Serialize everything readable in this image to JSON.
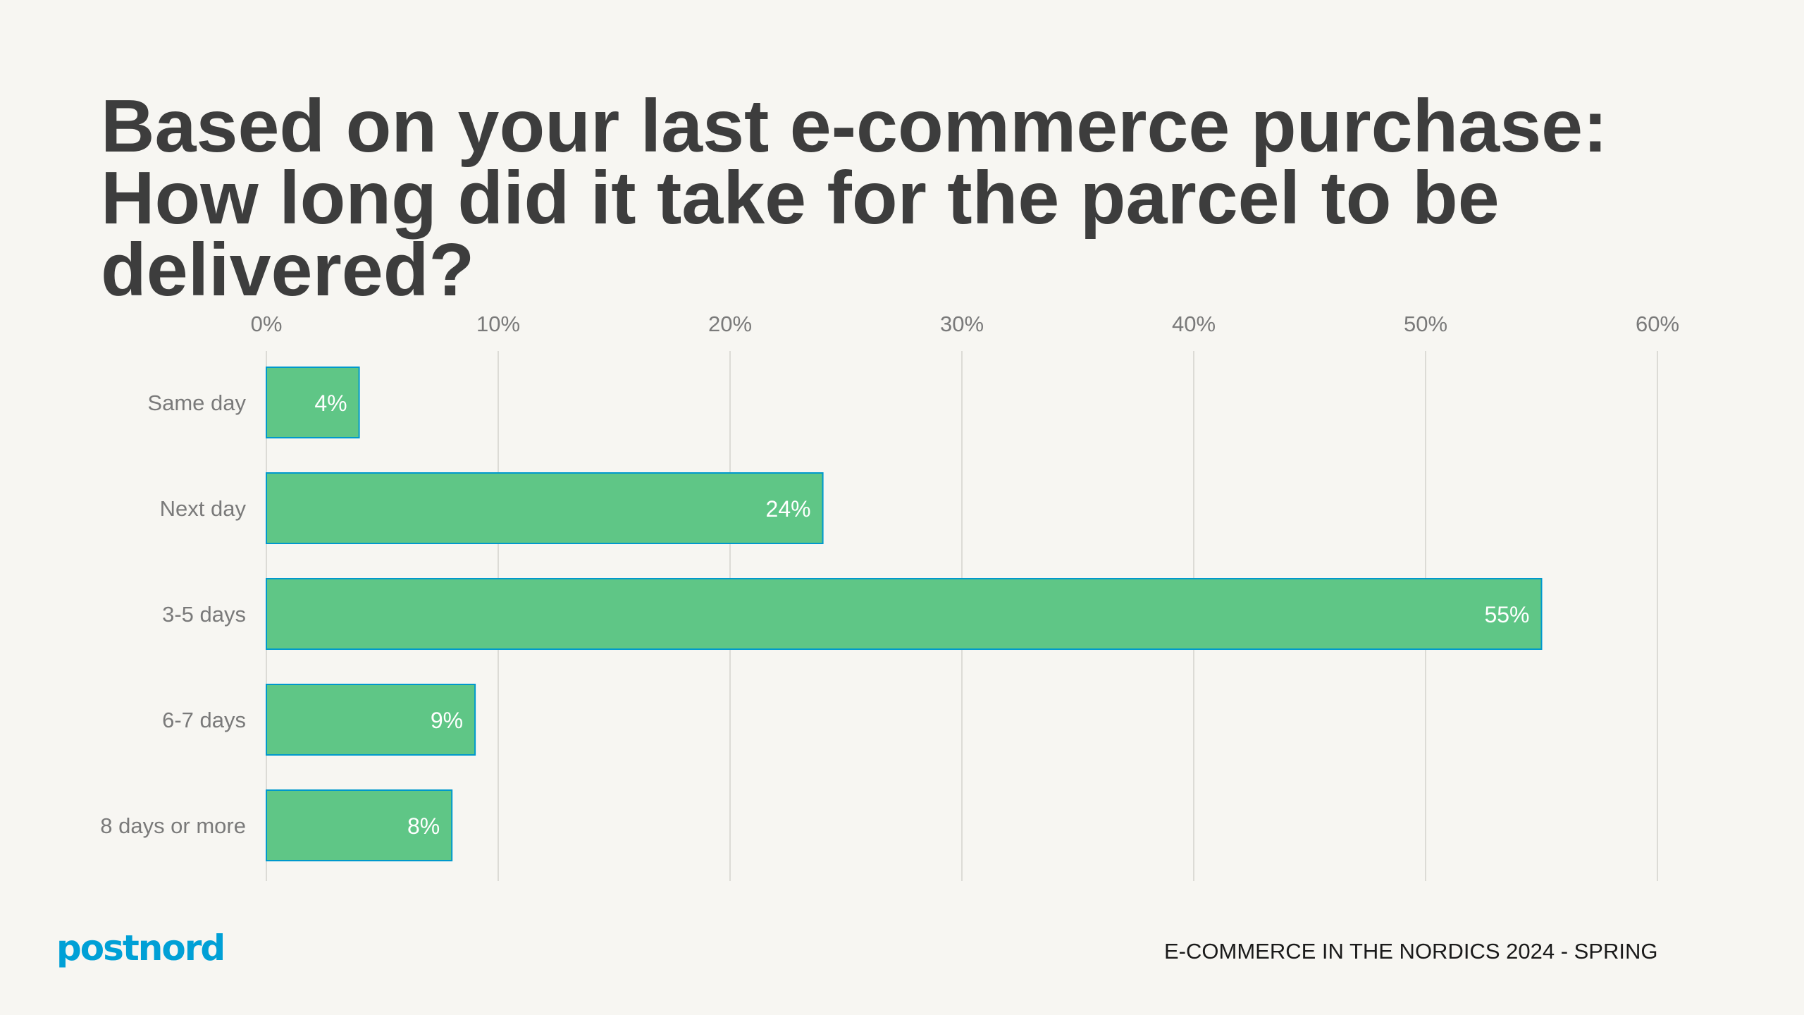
{
  "title": "Based on your last e-commerce purchase: How long did it take for the parcel to be delivered?",
  "footer": "E-COMMERCE IN THE NORDICS 2024 - SPRING",
  "logo": "postnord",
  "colors": {
    "bar": "#5fc686",
    "bar_border": "#0099cc",
    "grid": "#dcdbd6",
    "text": "#7a7a7a",
    "brand": "#00a0d6"
  },
  "chart_data": {
    "type": "bar",
    "orientation": "horizontal",
    "categories": [
      "Same day",
      "Next day",
      "3-5 days",
      "6-7 days",
      "8 days or more"
    ],
    "values": [
      4,
      24,
      55,
      9,
      8
    ],
    "data_labels": [
      "4%",
      "24%",
      "55%",
      "9%",
      "8%"
    ],
    "xlim": [
      0,
      60
    ],
    "xticks": [
      0,
      10,
      20,
      30,
      40,
      50,
      60
    ],
    "xtick_labels": [
      "0%",
      "10%",
      "20%",
      "30%",
      "40%",
      "50%",
      "60%"
    ],
    "xaxis_position": "top",
    "grid": true,
    "title": "Based on your last e-commerce purchase: How long did it take for the parcel to be delivered?",
    "xlabel": "",
    "ylabel": ""
  }
}
